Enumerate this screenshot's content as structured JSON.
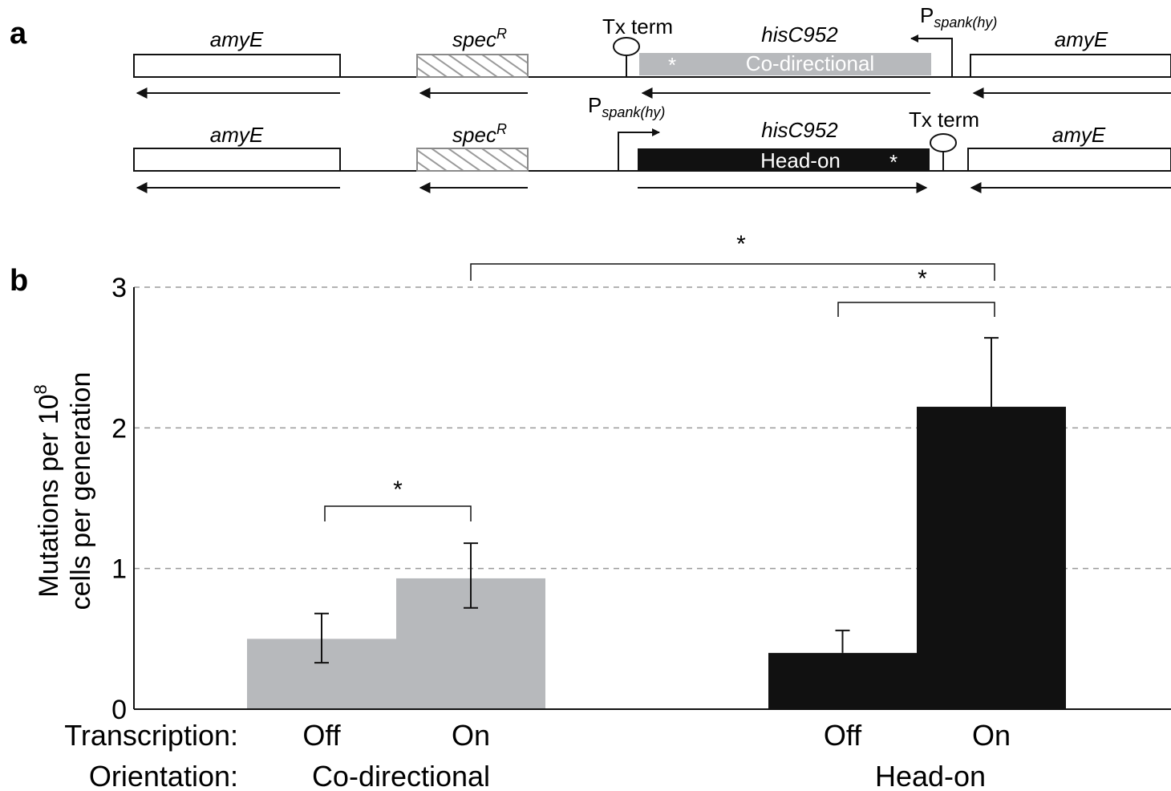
{
  "panel_a": {
    "letter": "a",
    "row1": {
      "gene_left": "amyE",
      "spec_main": "spec",
      "spec_sup": "R",
      "terminator": "Tx term",
      "his_gene": "hisC952",
      "insert_label": "Co-directional",
      "insert_star": "*",
      "promoter_main": "P",
      "promoter_sub": "spank(hy)",
      "gene_right": "amyE"
    },
    "row2": {
      "gene_left": "amyE",
      "spec_main": "spec",
      "spec_sup": "R",
      "promoter_main": "P",
      "promoter_sub": "spank(hy)",
      "his_gene": "hisC952",
      "terminator": "Tx term",
      "insert_label": "Head-on",
      "insert_star": "*",
      "gene_right": "amyE"
    },
    "colors": {
      "co_directional": "#b7b9bc",
      "head_on": "#111111"
    }
  },
  "panel_b": {
    "letter": "b",
    "ylabel_line1": "Mutations  per 10",
    "ylabel_sup": "8",
    "ylabel_line2": "cells per generation",
    "row_label_transcription": "Transcription:",
    "row_label_orientation": "Orientation:",
    "groups": [
      "Co-directional",
      "Head-on"
    ],
    "significance": [
      "*",
      "*",
      "*"
    ]
  },
  "chart_data": {
    "type": "bar",
    "title": "",
    "xlabel": "",
    "ylabel": "Mutations per 10^8 cells per generation",
    "ylim": [
      0,
      3
    ],
    "yticks": [
      0,
      1,
      2,
      3
    ],
    "grid": "dashed horizontal at 1, 2, 3",
    "categories": [
      {
        "transcription": "Off",
        "orientation": "Co-directional",
        "value": 0.5,
        "err_low": 0.33,
        "err_high": 0.68,
        "color": "#b7b9bc"
      },
      {
        "transcription": "On",
        "orientation": "Co-directional",
        "value": 0.93,
        "err_low": 0.72,
        "err_high": 1.18,
        "color": "#b7b9bc"
      },
      {
        "transcription": "Off",
        "orientation": "Head-on",
        "value": 0.4,
        "err_low": 0.4,
        "err_high": 0.56,
        "color": "#111111"
      },
      {
        "transcription": "On",
        "orientation": "Head-on",
        "value": 2.15,
        "err_low": 2.15,
        "err_high": 2.64,
        "color": "#111111"
      }
    ],
    "comparisons": [
      {
        "from": 0,
        "to": 1,
        "label": "*"
      },
      {
        "from": 2,
        "to": 3,
        "label": "*"
      },
      {
        "from": 1,
        "to": 3,
        "label": "*"
      }
    ]
  }
}
